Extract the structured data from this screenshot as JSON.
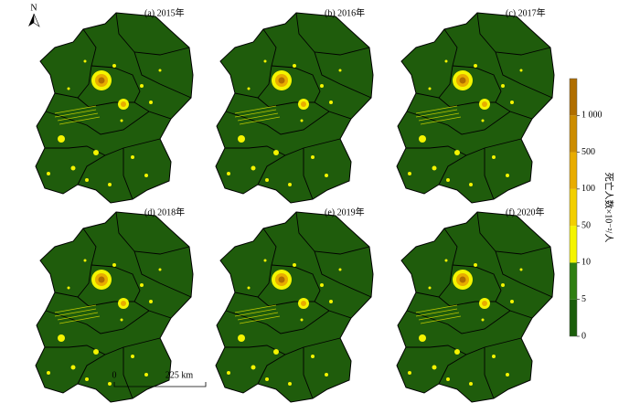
{
  "north": "N",
  "panels": [
    {
      "label": "(a) 2015年"
    },
    {
      "label": "(b) 2016年"
    },
    {
      "label": "(c) 2017年"
    },
    {
      "label": "(d) 2018年"
    },
    {
      "label": "(e) 2019年"
    },
    {
      "label": "(f) 2020年"
    }
  ],
  "scale_bar": {
    "start": "0",
    "end": "225 km"
  },
  "legend": {
    "title": "死亡人数×10⁻²/人",
    "ticks": [
      0,
      5,
      10,
      50,
      100,
      500,
      {
        "value": 1000,
        "label": "1 000"
      }
    ],
    "colors": [
      "#1b5e0b",
      "#2f7f12",
      "#f4f400",
      "#f2cf00",
      "#e8ac00",
      "#cc8c00",
      "#b06e00"
    ]
  }
}
